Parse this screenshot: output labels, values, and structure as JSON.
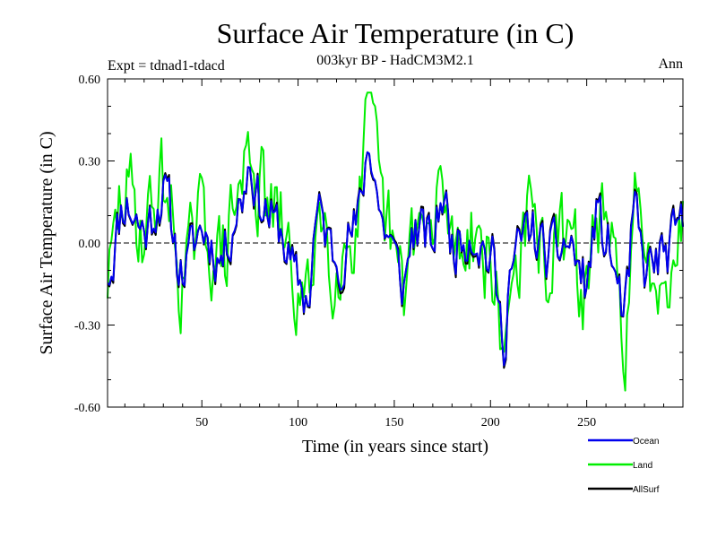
{
  "chart_data": {
    "type": "line",
    "title": "Surface Air Temperature (in C)",
    "subtitle": "003kyr BP - HadCM3M2.1",
    "left_label": "Expt = tdnad1-tdacd",
    "right_label": "Ann",
    "xlabel": "Time (in years since start)",
    "ylabel": "Surface Air Temperature (in C)",
    "xlim": [
      1,
      300
    ],
    "ylim": [
      -0.6,
      0.6
    ],
    "xticks": [
      50,
      100,
      150,
      200,
      250
    ],
    "xtick_labels": [
      "50",
      "100",
      "150",
      "200",
      "250"
    ],
    "yticks": [
      -0.6,
      -0.3,
      0.0,
      0.3,
      0.6
    ],
    "ytick_labels": [
      "-0.60",
      "-0.30",
      "0.00",
      "0.30",
      "0.60"
    ],
    "zero_line": "dashed",
    "legend_position": "bottom-right",
    "series": [
      {
        "name": "Ocean",
        "color": "#0000ee",
        "volatility": 1.0,
        "seed": 11
      },
      {
        "name": "Land",
        "color": "#00ee00",
        "volatility": 1.7,
        "seed": 29
      },
      {
        "name": "AllSurf",
        "color": "#000000",
        "volatility": 1.1,
        "seed": 11
      }
    ],
    "key_points": {
      "x": [
        1,
        10,
        20,
        30,
        40,
        50,
        60,
        70,
        75,
        80,
        90,
        100,
        105,
        110,
        120,
        130,
        137,
        145,
        155,
        160,
        170,
        175,
        180,
        190,
        200,
        207,
        210,
        220,
        230,
        240,
        250,
        255,
        260,
        270,
        275,
        280,
        290,
        300
      ],
      "y": [
        -0.1,
        0.15,
        0.05,
        0.18,
        -0.1,
        0.05,
        -0.05,
        0.15,
        0.3,
        0.15,
        0.05,
        -0.15,
        -0.2,
        0.1,
        -0.05,
        0.05,
        0.35,
        0.05,
        -0.15,
        0.05,
        0.0,
        0.18,
        0.0,
        0.05,
        -0.05,
        -0.35,
        -0.1,
        0.05,
        -0.05,
        0.0,
        -0.15,
        0.1,
        0.0,
        -0.25,
        0.1,
        -0.1,
        -0.05,
        0.05
      ]
    }
  }
}
